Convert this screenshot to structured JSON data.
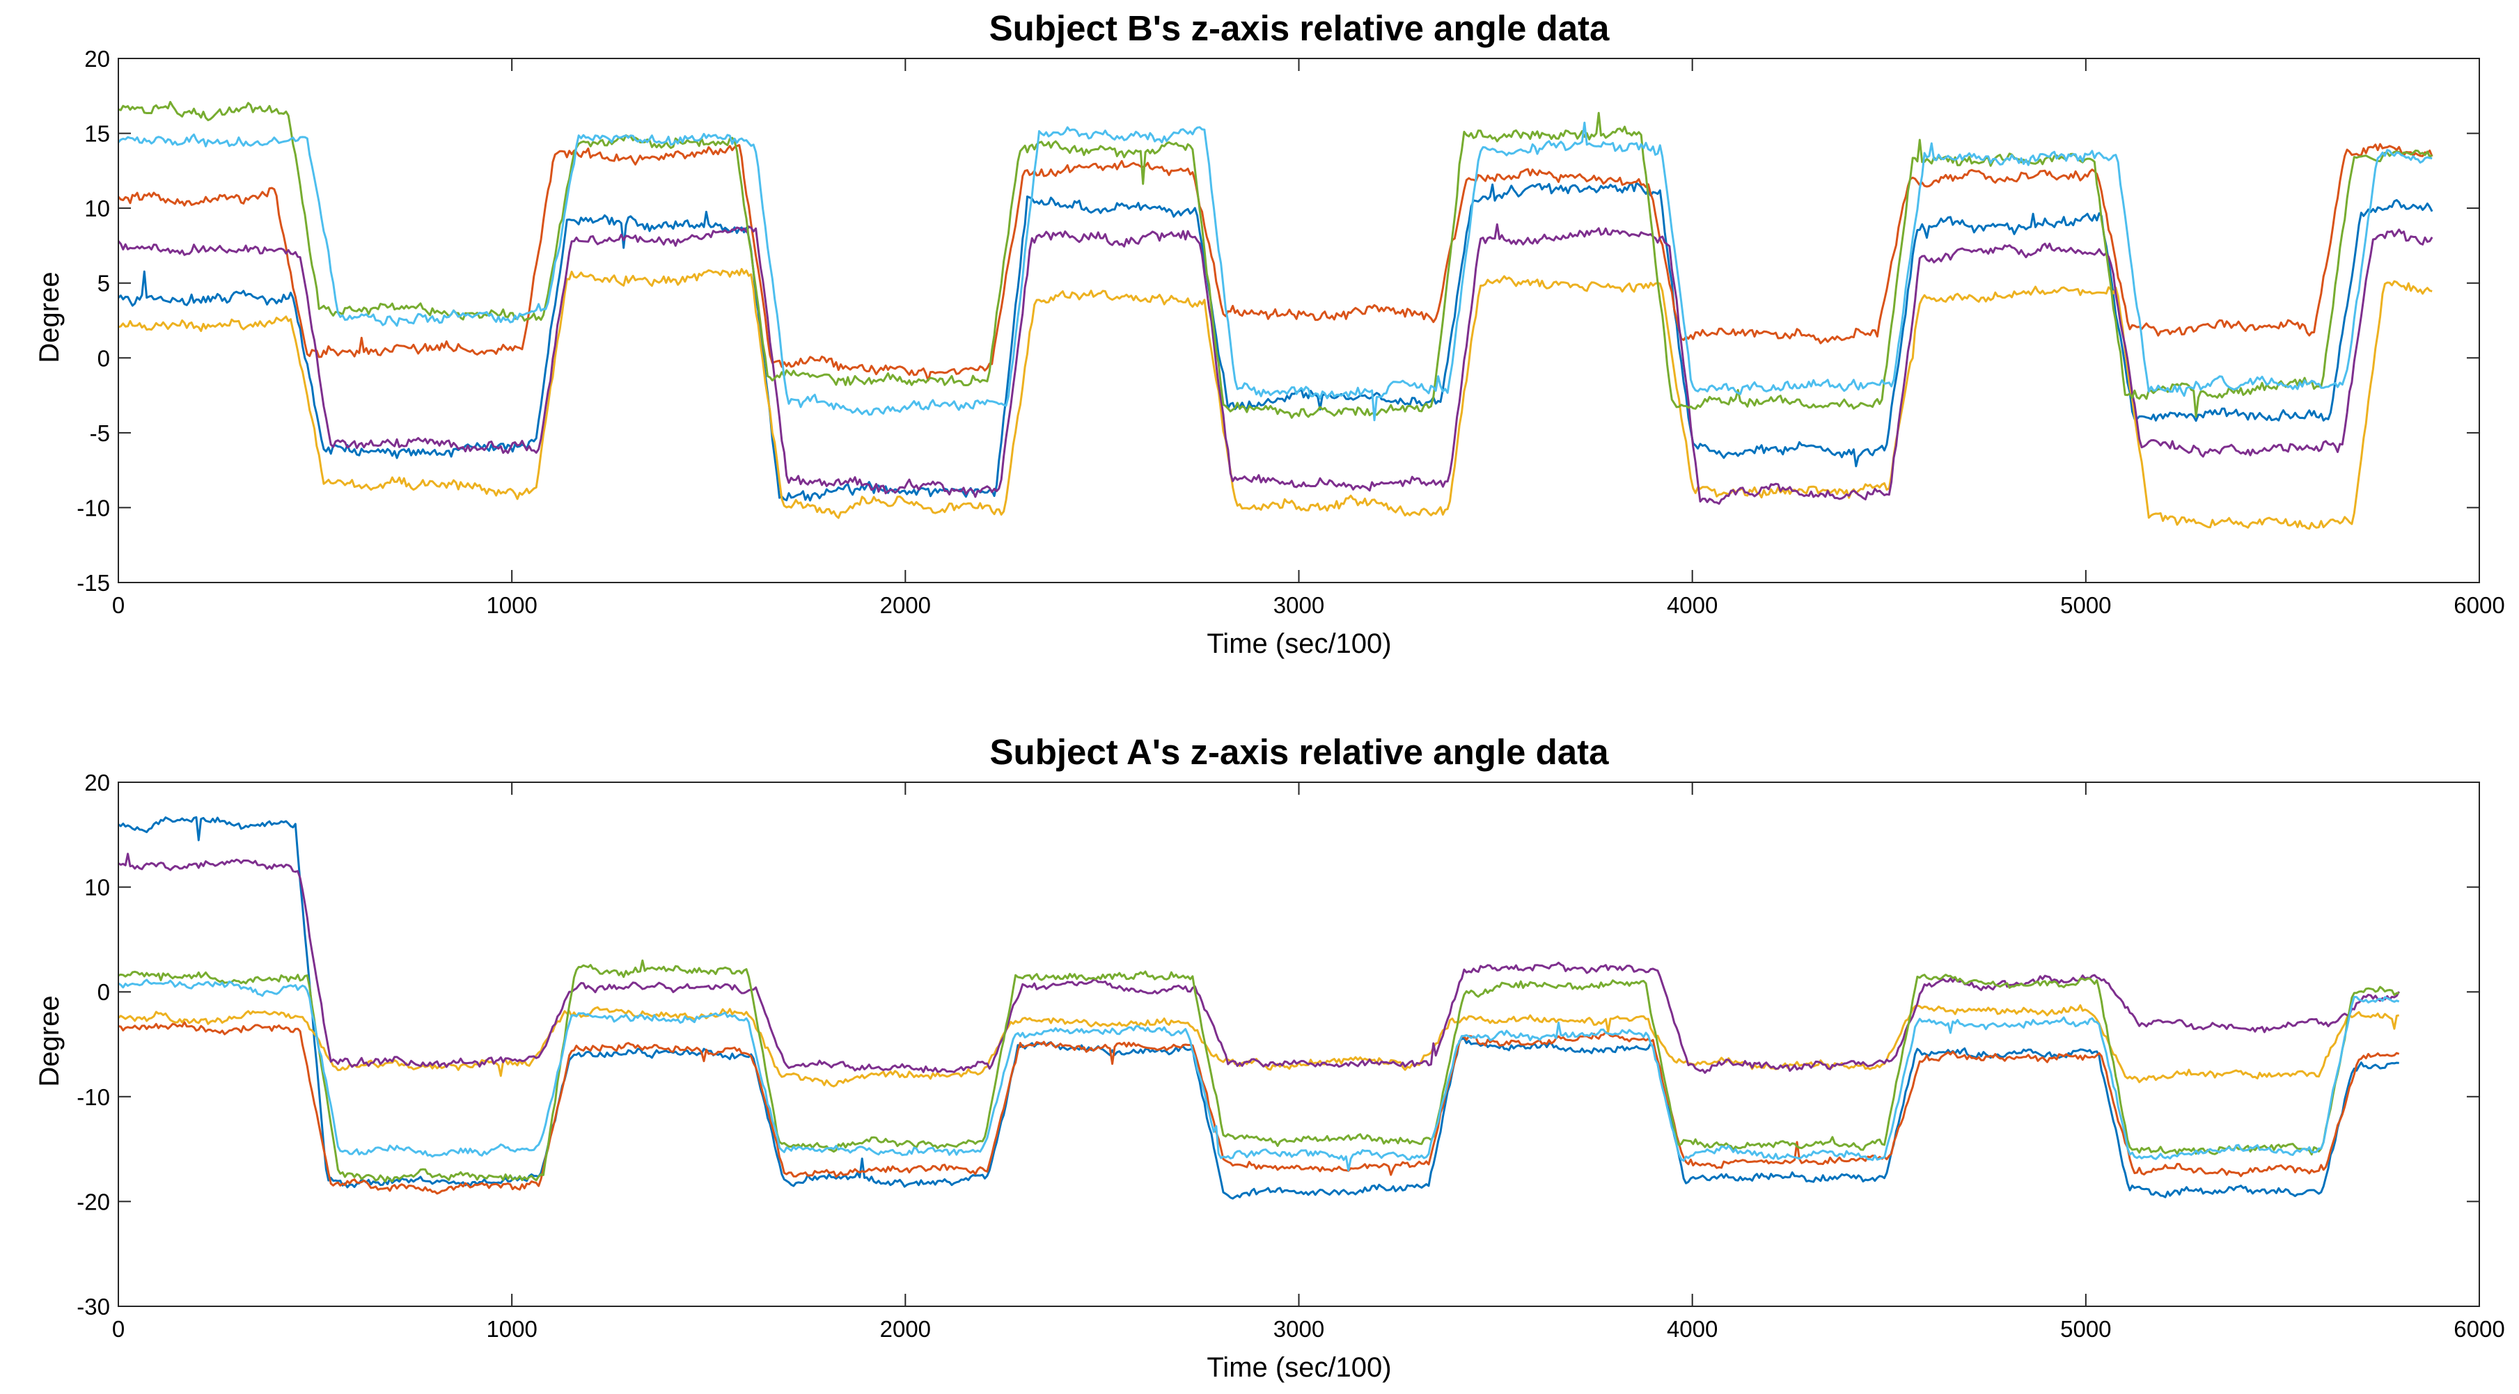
{
  "colors": {
    "blue": "#0072BD",
    "red": "#D95319",
    "yellow": "#EDB120",
    "purple": "#7E2F8E",
    "green": "#77AC30",
    "cyan": "#4DBEEE"
  },
  "chart_data": [
    {
      "type": "line",
      "title": "Subject B's z-axis relative angle data",
      "xlabel": "Time (sec/100)",
      "ylabel": "Degree",
      "xlim": [
        0,
        6000
      ],
      "ylim": [
        -15,
        20
      ],
      "xticks": [
        "0",
        "1000",
        "2000",
        "3000",
        "4000",
        "5000",
        "6000"
      ],
      "yticks": [
        "-15",
        "-10",
        "-5",
        "0",
        "5",
        "10",
        "15",
        "20"
      ],
      "grid": false,
      "legend": "none",
      "x_end": 5880,
      "series": [
        {
          "color": "#0072BD",
          "trans": [
            480,
            1100,
            1640,
            2270,
            2780,
            3400,
            3960,
            4530,
            5080,
            5660
          ],
          "levels": [
            4,
            -6,
            9,
            -9,
            10,
            -3,
            11,
            -6,
            9,
            -4,
            10
          ]
        },
        {
          "color": "#D95319",
          "trans": [
            440,
            1070,
            1620,
            2260,
            2770,
            3390,
            3930,
            4510,
            5070,
            5620
          ],
          "levels": [
            10.5,
            0.5,
            13.5,
            -0.5,
            12.5,
            3,
            12,
            1.5,
            12,
            2,
            14
          ]
        },
        {
          "color": "#EDB120",
          "trans": [
            480,
            1100,
            1650,
            2290,
            2800,
            3420,
            3960,
            4540,
            5120,
            5720
          ],
          "levels": [
            2,
            -8.5,
            5.5,
            -10,
            4,
            -10,
            5,
            -9,
            4,
            -11,
            4.5
          ]
        },
        {
          "color": "#7E2F8E",
          "trans": [
            500,
            1110,
            1660,
            2280,
            2790,
            3420,
            3980,
            4540,
            5100,
            5690
          ],
          "levels": [
            7.5,
            -6,
            8,
            -8.5,
            8,
            -8.5,
            8,
            -9,
            7,
            -6,
            8
          ]
        },
        {
          "color": "#77AC30",
          "trans": [
            470,
            1120,
            1610,
            2250,
            2770,
            3380,
            3910,
            4520,
            5060,
            5640
          ],
          "levels": [
            16.5,
            3,
            14.5,
            -1.5,
            14,
            -3.5,
            15,
            -3,
            13.5,
            -2,
            13.5
          ]
        },
        {
          "color": "#4DBEEE",
          "trans": [
            520,
            1130,
            1660,
            2300,
            2800,
            3420,
            3960,
            4550,
            5120,
            5700
          ],
          "levels": [
            14.5,
            3,
            14.5,
            -3,
            15,
            -2,
            14,
            -2,
            13.5,
            -2,
            13.5
          ]
        }
      ]
    },
    {
      "type": "line",
      "title": "Subject A's z-axis relative angle data",
      "xlabel": "Time (sec/100)",
      "ylabel": "Degree",
      "xlim": [
        0,
        6000
      ],
      "ylim": [
        -30,
        20
      ],
      "xticks": [
        "0",
        "1000",
        "2000",
        "3000",
        "4000",
        "5000",
        "6000"
      ],
      "yticks": [
        "-30",
        "-20",
        "-10",
        "0",
        "10",
        "20"
      ],
      "grid": false,
      "legend": "none",
      "x_end": 5800,
      "series": [
        {
          "color": "#0072BD",
          "trans": [
            490,
            1110,
            1650,
            2250,
            2770,
            3370,
            3940,
            4530,
            5070,
            5640
          ],
          "levels": [
            16,
            -18,
            -6,
            -18,
            -5.5,
            -19,
            -5,
            -18,
            -6,
            -19,
            -7
          ]
        },
        {
          "color": "#D95319",
          "trans": [
            500,
            1110,
            1650,
            2250,
            2770,
            3370,
            3940,
            4540,
            5080,
            5650
          ],
          "levels": [
            -3.5,
            -18.5,
            -5.5,
            -17,
            -5,
            -16.5,
            -4.5,
            -16,
            -6.5,
            -17,
            -6.5
          ]
        },
        {
          "color": "#EDB120",
          "trans": [
            510,
            1090,
            1640,
            2230,
            2760,
            3350,
            3920,
            4520,
            5060,
            5630
          ],
          "levels": [
            -2.5,
            -7,
            -2,
            -8,
            -3,
            -7,
            -2.5,
            -7,
            -2,
            -8,
            -2.5
          ]
        },
        {
          "color": "#7E2F8E",
          "trans": [
            500,
            1110,
            1660,
            2260,
            2780,
            3380,
            3950,
            4550,
            5090,
            5660
          ],
          "levels": [
            12,
            -6.5,
            0.5,
            -7,
            0.5,
            -7,
            2,
            -7,
            1,
            -3,
            -0.5
          ]
        },
        {
          "color": "#77AC30",
          "trans": [
            520,
            1120,
            1640,
            2240,
            2770,
            3380,
            3920,
            4530,
            5070,
            5640
          ],
          "levels": [
            1.5,
            -17.5,
            2,
            -14.5,
            1.5,
            -14,
            0.5,
            -14.5,
            1,
            -15,
            0
          ]
        },
        {
          "color": "#4DBEEE",
          "trans": [
            520,
            1110,
            1640,
            2240,
            2760,
            3370,
            3930,
            4530,
            5070,
            5640
          ],
          "levels": [
            0.5,
            -15,
            -2.5,
            -15,
            -4,
            -15.5,
            -4,
            -15.5,
            -3,
            -15.5,
            -1
          ]
        }
      ]
    }
  ]
}
